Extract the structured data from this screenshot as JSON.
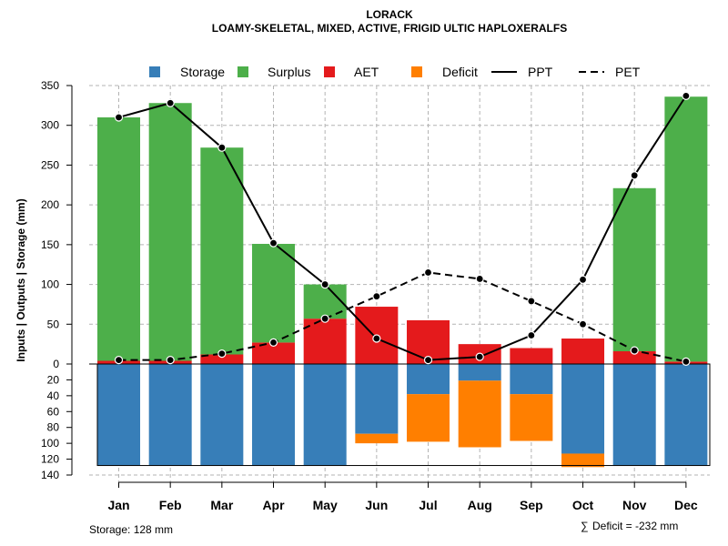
{
  "chart_data": {
    "type": "bar",
    "title": "LORACK",
    "subtitle": "LOAMY-SKELETAL, MIXED, ACTIVE, FRIGID ULTIC HAPLOXERALFS",
    "ylabel": "Inputs | Outputs | Storage    (mm)",
    "categories": [
      "Jan",
      "Feb",
      "Mar",
      "Apr",
      "May",
      "Jun",
      "Jul",
      "Aug",
      "Sep",
      "Oct",
      "Nov",
      "Dec"
    ],
    "upper_axis": {
      "range": [
        0,
        350
      ],
      "ticks": [
        0,
        50,
        100,
        150,
        200,
        250,
        300,
        350
      ]
    },
    "lower_axis": {
      "range": [
        0,
        140
      ],
      "ticks": [
        20,
        40,
        60,
        80,
        100,
        120,
        140
      ]
    },
    "series": [
      {
        "name": "Storage",
        "color": "#377EB8",
        "axis": "lower",
        "values": [
          128,
          128,
          128,
          128,
          128,
          88,
          38,
          21,
          38,
          113,
          128,
          128
        ]
      },
      {
        "name": "Surplus",
        "color": "#4DAF4A",
        "axis": "upper",
        "values": [
          306,
          324,
          260,
          124,
          43,
          0,
          0,
          0,
          0,
          0,
          205,
          333
        ]
      },
      {
        "name": "AET",
        "color": "#E41A1C",
        "axis": "upper",
        "values": [
          4,
          4,
          12,
          27,
          57,
          72,
          55,
          25,
          20,
          32,
          16,
          3
        ]
      },
      {
        "name": "Deficit",
        "color": "#FF7F00",
        "axis": "lower",
        "values": [
          0,
          0,
          0,
          0,
          0,
          12,
          60,
          84,
          59,
          17,
          0,
          0
        ]
      },
      {
        "name": "PPT",
        "color": "#000000",
        "line": "solid",
        "axis": "upper",
        "values": [
          310,
          328,
          272,
          152,
          100,
          32,
          5,
          9,
          36,
          106,
          237,
          337
        ]
      },
      {
        "name": "PET",
        "color": "#000000",
        "line": "dashed",
        "axis": "upper",
        "values": [
          5,
          5,
          13,
          27,
          57,
          85,
          115,
          107,
          79,
          50,
          17,
          3
        ]
      }
    ],
    "storage_note": "Storage: 128 mm",
    "deficit_note": "Deficit = -232 mm",
    "legend_position": "top"
  }
}
